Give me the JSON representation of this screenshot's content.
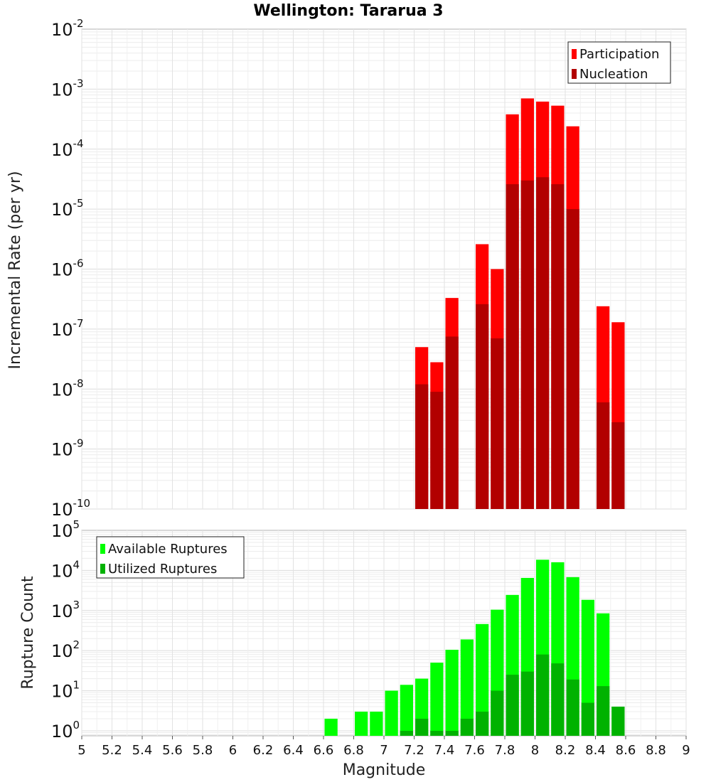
{
  "title": "Wellington: Tararua 3",
  "xlabel": "Magnitude",
  "x_ticks": [
    "5",
    "5.2",
    "5.4",
    "5.6",
    "5.8",
    "6",
    "6.2",
    "6.4",
    "6.6",
    "6.8",
    "7",
    "7.2",
    "7.4",
    "7.6",
    "7.8",
    "8",
    "8.2",
    "8.4",
    "8.6",
    "8.8",
    "9"
  ],
  "chart_data": [
    {
      "type": "bar",
      "ylabel": "Incremental Rate (per yr)",
      "yscale": "log",
      "ylim": [
        1e-10,
        0.01
      ],
      "y_ticks": [
        {
          "base": "10",
          "exp": "-10"
        },
        {
          "base": "10",
          "exp": "-9"
        },
        {
          "base": "10",
          "exp": "-8"
        },
        {
          "base": "10",
          "exp": "-7"
        },
        {
          "base": "10",
          "exp": "-6"
        },
        {
          "base": "10",
          "exp": "-5"
        },
        {
          "base": "10",
          "exp": "-4"
        },
        {
          "base": "10",
          "exp": "-3"
        },
        {
          "base": "10",
          "exp": "-2"
        }
      ],
      "xlim": [
        5,
        9
      ],
      "legend_position": "top-right",
      "x": [
        7.25,
        7.35,
        7.45,
        7.65,
        7.75,
        7.85,
        7.95,
        8.05,
        8.15,
        8.25,
        8.45,
        8.55
      ],
      "series": [
        {
          "name": "Participation",
          "color": "#ff0000",
          "values": [
            5e-08,
            2.8e-08,
            3.3e-07,
            2.6e-06,
            1e-06,
            0.00038,
            0.0007,
            0.00062,
            0.00053,
            0.00024,
            2.4e-07,
            1.3e-07
          ]
        },
        {
          "name": "Nucleation",
          "color": "#b20000",
          "values": [
            1.2e-08,
            9e-09,
            7.5e-08,
            2.6e-07,
            7e-08,
            2.6e-05,
            3e-05,
            3.4e-05,
            2.6e-05,
            1e-05,
            6e-09,
            2.8e-09
          ]
        }
      ]
    },
    {
      "type": "bar",
      "ylabel": "Rupture Count",
      "yscale": "log",
      "ylim": [
        0.75,
        100000.0
      ],
      "y_ticks": [
        {
          "base": "10",
          "exp": "0",
          "value": 1
        },
        {
          "base": "10",
          "exp": "1",
          "value": 10
        },
        {
          "base": "10",
          "exp": "2",
          "value": 100
        },
        {
          "base": "10",
          "exp": "3",
          "value": 1000
        },
        {
          "base": "10",
          "exp": "4",
          "value": 10000
        },
        {
          "base": "10",
          "exp": "5",
          "value": 100000
        }
      ],
      "xlim": [
        5,
        9
      ],
      "legend_position": "top-left",
      "x": [
        6.65,
        6.75,
        6.85,
        6.95,
        7.05,
        7.15,
        7.25,
        7.35,
        7.45,
        7.55,
        7.65,
        7.75,
        7.85,
        7.95,
        8.05,
        8.15,
        8.25,
        8.35,
        8.45,
        8.55
      ],
      "series": [
        {
          "name": "Available Ruptures",
          "color": "#00ff00",
          "values": [
            2,
            null,
            3,
            3,
            10,
            14,
            20,
            50,
            105,
            190,
            460,
            1050,
            2450,
            6500,
            18500,
            16000,
            6800,
            1850,
            850,
            4
          ]
        },
        {
          "name": "Utilized Ruptures",
          "color": "#00b200",
          "values": [
            null,
            null,
            null,
            null,
            null,
            1,
            2,
            1,
            1,
            2,
            3,
            10,
            25,
            30,
            80,
            48,
            19,
            5,
            13,
            4
          ]
        }
      ]
    }
  ]
}
